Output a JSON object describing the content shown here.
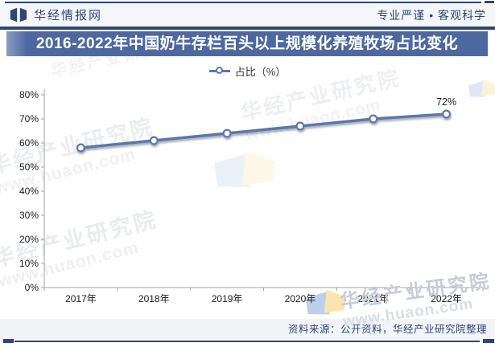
{
  "header": {
    "brand": "华经情报网",
    "slogan": "专业严谨 • 客观科学"
  },
  "title": "2016-2022年中国奶牛存栏百头以上规模化养殖牧场占比变化",
  "legend": {
    "label": "占比（%）"
  },
  "chart_data": {
    "type": "line",
    "title": "2016-2022年中国奶牛存栏百头以上规模化养殖牧场占比变化",
    "categories": [
      "2017年",
      "2018年",
      "2019年",
      "2020年",
      "2021年",
      "2022年"
    ],
    "series": [
      {
        "name": "占比（%）",
        "values": [
          58,
          61,
          64,
          67,
          70,
          72
        ]
      }
    ],
    "ylim": [
      0,
      80
    ],
    "ytick_step": 10,
    "ytick_suffix": "%",
    "grid": false,
    "legend_position": "top",
    "point_labels": {
      "last_only": true,
      "text": "72%"
    }
  },
  "source_note": "资料来源：公开资料，华经产业研究院整理",
  "watermark": {
    "text_primary": "华经产业研究院",
    "text_secondary": "www.huaon.com"
  },
  "colors": {
    "navy": "#2c4678",
    "banner": "#4d68a1",
    "line": "#5a77ad",
    "axis": "#a3a3a3",
    "text": "#1a1a1a",
    "label": "#1a1a1a"
  }
}
